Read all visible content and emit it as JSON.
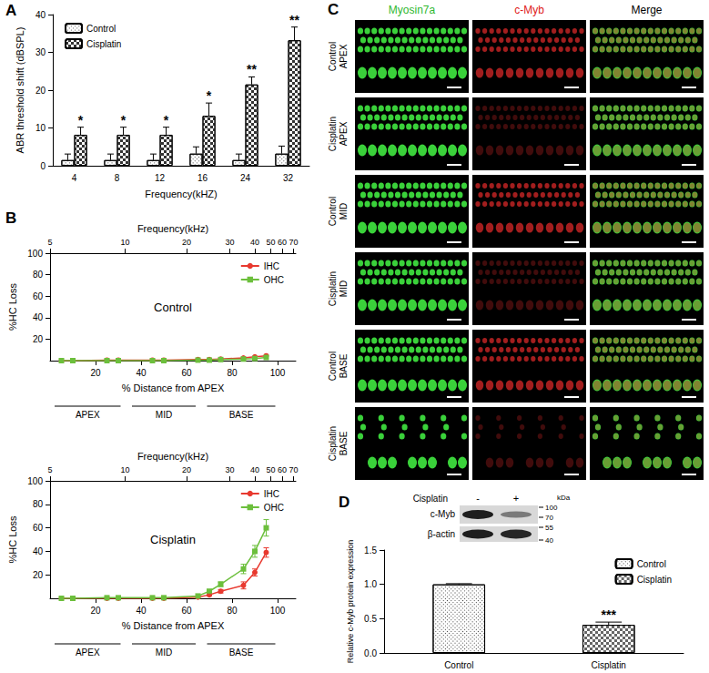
{
  "chart_data": [
    {
      "panel": "A",
      "type": "bar",
      "x_label": "Frequency(kHZ)",
      "y_label": "ABR threshold shift (dBSPL)",
      "categories": [
        "4",
        "8",
        "12",
        "16",
        "24",
        "32"
      ],
      "ylim": [
        0,
        40
      ],
      "yticks": [
        0,
        10,
        20,
        30,
        40
      ],
      "legend": "top-left",
      "series": [
        {
          "name": "Control",
          "color": "#555555",
          "values": [
            1.5,
            1.5,
            1.5,
            3.2,
            1.5,
            3.2
          ],
          "errors": [
            1.6,
            1.6,
            1.6,
            1.8,
            1.6,
            2.0
          ]
        },
        {
          "name": "Cisplatin",
          "color": "#333333",
          "values": [
            8.2,
            8.2,
            8.2,
            13.2,
            21.5,
            33.2
          ],
          "errors": [
            2.0,
            2.0,
            2.0,
            3.4,
            2.0,
            3.5
          ],
          "annotations": [
            "*",
            "*",
            "*",
            "*",
            "**",
            "**"
          ]
        }
      ]
    },
    {
      "panel": "B",
      "type": "line",
      "title": "Control",
      "x_label": "% Distance from APEX",
      "x2_label": "Frequency(kHz)",
      "y_label": "%HC Loss",
      "x": [
        5,
        10,
        25,
        30,
        45,
        50,
        65,
        70,
        75,
        85,
        90,
        95
      ],
      "xlim": [
        0,
        108
      ],
      "xticks": [
        20,
        40,
        60,
        80,
        100
      ],
      "x2ticks": [
        {
          "value": 0,
          "label": "5"
        },
        {
          "value": 33,
          "label": "10"
        },
        {
          "value": 60,
          "label": "20"
        },
        {
          "value": 79,
          "label": "30"
        },
        {
          "value": 90,
          "label": "40"
        },
        {
          "value": 97,
          "label": "50"
        },
        {
          "value": 102,
          "label": "60"
        },
        {
          "value": 107,
          "label": "70"
        }
      ],
      "ylim": [
        0,
        100
      ],
      "yticks": [
        20,
        40,
        60,
        80,
        100
      ],
      "legend": "top-right",
      "regions": [
        {
          "label": "APEX",
          "from": 2,
          "to": 31
        },
        {
          "label": "MID",
          "from": 36,
          "to": 64
        },
        {
          "label": "BASE",
          "from": 69,
          "to": 99
        }
      ],
      "series": [
        {
          "name": "IHC",
          "color": "#e8392f",
          "marker": "circle",
          "values": [
            0,
            0,
            0.5,
            0.5,
            0.5,
            0.5,
            1,
            1,
            1.5,
            2.5,
            3.5,
            4.5
          ]
        },
        {
          "name": "OHC",
          "color": "#6cbf3c",
          "marker": "square",
          "values": [
            0,
            0,
            0,
            0,
            0,
            0,
            0.5,
            0.5,
            1,
            1.5,
            2,
            3
          ]
        }
      ]
    },
    {
      "type": "line",
      "title": "Cisplatin",
      "x_label": "% Distance from APEX",
      "x2_label": "Frequency(kHz)",
      "y_label": "%HC Loss",
      "x": [
        5,
        10,
        25,
        30,
        45,
        50,
        65,
        70,
        75,
        85,
        90,
        95
      ],
      "xlim": [
        0,
        108
      ],
      "xticks": [
        20,
        40,
        60,
        80,
        100
      ],
      "x2ticks": [
        {
          "value": 0,
          "label": "5"
        },
        {
          "value": 33,
          "label": "10"
        },
        {
          "value": 60,
          "label": "20"
        },
        {
          "value": 79,
          "label": "30"
        },
        {
          "value": 90,
          "label": "40"
        },
        {
          "value": 97,
          "label": "50"
        },
        {
          "value": 102,
          "label": "60"
        },
        {
          "value": 107,
          "label": "70"
        }
      ],
      "ylim": [
        0,
        100
      ],
      "yticks": [
        20,
        40,
        60,
        80,
        100
      ],
      "legend": "top-right",
      "regions": [
        {
          "label": "APEX",
          "from": 2,
          "to": 31
        },
        {
          "label": "MID",
          "from": 36,
          "to": 64
        },
        {
          "label": "BASE",
          "from": 69,
          "to": 99
        }
      ],
      "series": [
        {
          "name": "IHC",
          "color": "#e8392f",
          "marker": "circle",
          "values": [
            0,
            0,
            0,
            0,
            0,
            0,
            1,
            3,
            6,
            11,
            22,
            39
          ],
          "errors": [
            null,
            null,
            null,
            null,
            null,
            null,
            null,
            1,
            1.5,
            3,
            3,
            4
          ]
        },
        {
          "name": "OHC",
          "color": "#6cbf3c",
          "marker": "square",
          "values": [
            0,
            0,
            0.5,
            0.5,
            0.5,
            0.5,
            2,
            6,
            12,
            25,
            40,
            60
          ],
          "errors": [
            null,
            null,
            null,
            null,
            null,
            null,
            null,
            1.5,
            2,
            4,
            5,
            7
          ]
        }
      ]
    },
    {
      "panel": "D",
      "type": "bar",
      "y_label": "Relative c-Myb protein expression",
      "categories": [
        "Control",
        "Cisplatin"
      ],
      "ylim": [
        0,
        1.5
      ],
      "yticks": [
        {
          "value": 0,
          "label": "0.0"
        },
        {
          "value": 0.5,
          "label": "0.5"
        },
        {
          "value": 1,
          "label": "1.0"
        },
        {
          "value": 1.5,
          "label": "1.5"
        }
      ],
      "legend": "top-right",
      "series": [
        {
          "name": "Control",
          "color": "#444444",
          "values": [
            1.0,
            null
          ],
          "errors": [
            0.01,
            null
          ]
        },
        {
          "name": "Cisplatin",
          "color": "#666666",
          "values": [
            null,
            0.41
          ],
          "errors": [
            null,
            0.04
          ],
          "annotations": [
            null,
            "***"
          ]
        }
      ]
    }
  ],
  "panel_c": {
    "panel": "C",
    "columns": [
      {
        "label": "Myosin7a",
        "color": "#2fb82f"
      },
      {
        "label": "c-Myb",
        "color": "#e02020"
      },
      {
        "label": "Merge",
        "color": "#000000"
      }
    ],
    "rows": [
      [
        "Control",
        "APEX"
      ],
      [
        "Cisplatin",
        "APEX"
      ],
      [
        "Control",
        "MID"
      ],
      [
        "Cisplatin",
        "MID"
      ],
      [
        "Control",
        "BASE"
      ],
      [
        "Cisplatin",
        "BASE"
      ]
    ]
  },
  "western_blot": {
    "treatment": "Cisplatin",
    "lanes": [
      "-",
      "+"
    ],
    "unit": "kDa",
    "markers": [
      100,
      70,
      55,
      40
    ],
    "bands": [
      "c-Myb",
      "β-actin"
    ]
  }
}
